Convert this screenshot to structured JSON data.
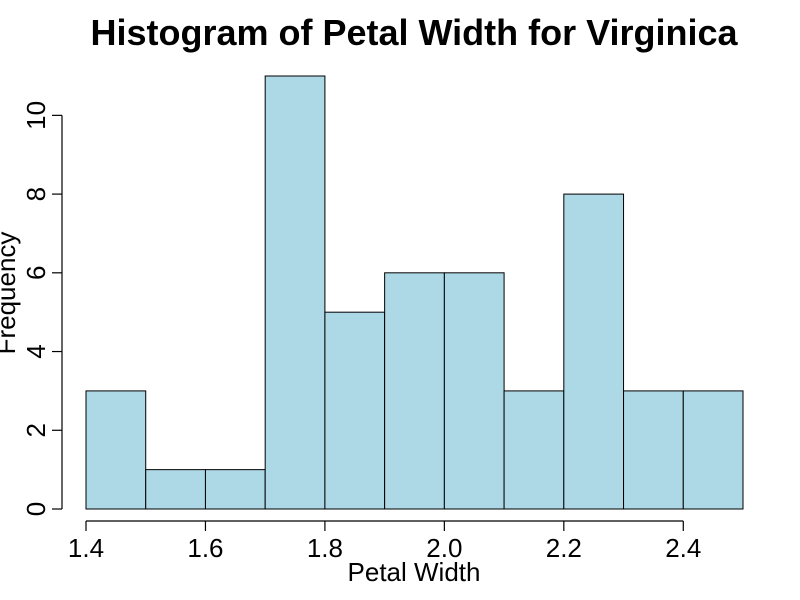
{
  "chart_data": {
    "type": "bar",
    "title": "Histogram of Petal Width for Virginica",
    "xlabel": "Petal Width",
    "ylabel": "Frequency",
    "bins": [
      {
        "start": 1.4,
        "end": 1.5,
        "count": 3
      },
      {
        "start": 1.5,
        "end": 1.6,
        "count": 1
      },
      {
        "start": 1.6,
        "end": 1.7,
        "count": 1
      },
      {
        "start": 1.7,
        "end": 1.8,
        "count": 11
      },
      {
        "start": 1.8,
        "end": 1.9,
        "count": 5
      },
      {
        "start": 1.9,
        "end": 2.0,
        "count": 6
      },
      {
        "start": 2.0,
        "end": 2.1,
        "count": 6
      },
      {
        "start": 2.1,
        "end": 2.2,
        "count": 3
      },
      {
        "start": 2.2,
        "end": 2.3,
        "count": 8
      },
      {
        "start": 2.3,
        "end": 2.4,
        "count": 3
      },
      {
        "start": 2.4,
        "end": 2.5,
        "count": 3
      }
    ],
    "x_ticks": [
      "1.4",
      "1.6",
      "1.8",
      "2.0",
      "2.2",
      "2.4"
    ],
    "y_ticks": [
      "0",
      "2",
      "4",
      "6",
      "8",
      "10"
    ],
    "xlim": [
      1.4,
      2.5
    ],
    "ylim": [
      0,
      11
    ],
    "grid": false,
    "bar_color": "#add8e6",
    "edge_color": "#000000"
  }
}
